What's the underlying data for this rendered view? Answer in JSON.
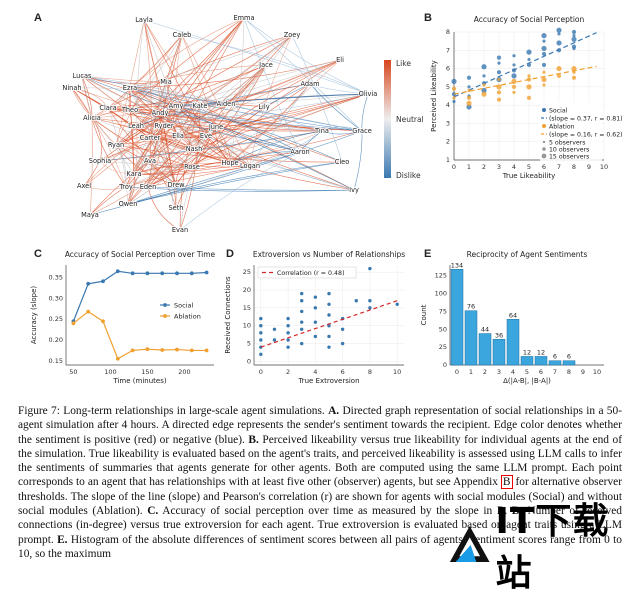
{
  "panelA": {
    "label": "A",
    "colorbar": {
      "top": "Like",
      "mid": "Neutral",
      "bottom": "Dislike"
    },
    "nodes": [
      "Emma",
      "Layla",
      "Caleb",
      "Zoey",
      "Eli",
      "Lucas",
      "Jace",
      "Ninah",
      "Ezra",
      "Mia",
      "Adam",
      "Olivia",
      "Clara",
      "Alicia",
      "Theo",
      "Andy",
      "Amy",
      "Kate",
      "Aiden",
      "Lily",
      "Leah",
      "Ryder",
      "June",
      "Grace",
      "Carter",
      "Ella",
      "Eve",
      "Tina",
      "Ryan",
      "Nash",
      "Aaron",
      "Sophia",
      "Ava",
      "Rose",
      "Hope",
      "Logan",
      "Cleo",
      "Kara",
      "Troy",
      "Drew",
      "Axel",
      "Eden",
      "Ivy",
      "Owen",
      "Seth",
      "Maya",
      "Evan"
    ]
  },
  "colors": {
    "social": "#3a78b0",
    "ablation": "#f0a030",
    "like": "#d8461e",
    "dislike": "#3a78b0"
  },
  "panelB": {
    "label": "B",
    "title": "Accuracy of Social Perception"
  },
  "panelC": {
    "label": "C",
    "title": "Accuracy of Social Perception over Time"
  },
  "panelD": {
    "label": "D",
    "title": "Extroversion vs Number of Relationships"
  },
  "panelE": {
    "label": "E",
    "title": "Reciprocity of Agent Sentiments"
  },
  "chart_data": [
    {
      "type": "scatter",
      "title": "Accuracy of Social Perception",
      "xlabel": "True Likeability",
      "ylabel": "Perceived Likeability",
      "xlim": [
        0,
        10
      ],
      "ylim": [
        1,
        8
      ],
      "xticks": [
        0,
        1,
        2,
        3,
        4,
        5,
        6,
        7,
        8,
        9,
        10
      ],
      "yticks": [
        1,
        2,
        3,
        4,
        5,
        6,
        7,
        8
      ],
      "legend_position": "bottom-right",
      "series": [
        {
          "name": "Social",
          "fit_label": "(slope = 0.37, r = 0.81)",
          "fit": {
            "slope": 0.37,
            "intercept": 4.45
          },
          "points": [
            [
              0,
              4.2
            ],
            [
              0,
              4.6
            ],
            [
              0,
              5.3
            ],
            [
              1,
              4.5
            ],
            [
              1,
              5.5
            ],
            [
              1,
              3.9
            ],
            [
              1,
              5.0
            ],
            [
              2,
              5.2
            ],
            [
              2,
              4.8
            ],
            [
              2,
              5.6
            ],
            [
              3,
              5.8
            ],
            [
              3,
              5.4
            ],
            [
              3,
              6.3
            ],
            [
              4,
              5.9
            ],
            [
              4,
              5.6
            ],
            [
              4,
              6.7
            ],
            [
              5,
              6.2
            ],
            [
              5,
              6.9
            ],
            [
              5,
              6.5
            ],
            [
              6,
              6.8
            ],
            [
              6,
              7.1
            ],
            [
              6,
              7.5
            ],
            [
              6,
              6.2
            ],
            [
              7,
              7.4
            ],
            [
              7,
              7.9
            ],
            [
              7,
              7.0
            ],
            [
              7,
              8.1
            ],
            [
              8,
              7.8
            ],
            [
              8,
              7.2
            ],
            [
              8,
              7.6
            ],
            [
              8,
              7.1
            ],
            [
              8,
              8.0
            ],
            [
              6,
              7.8
            ],
            [
              4,
              6.2
            ],
            [
              3,
              6.6
            ],
            [
              2,
              6.1
            ]
          ]
        },
        {
          "name": "Ablation",
          "fit_label": "(slope = 0.16, r = 0.62)",
          "fit": {
            "slope": 0.16,
            "intercept": 4.6
          },
          "points": [
            [
              0,
              4.4
            ],
            [
              0,
              4.9
            ],
            [
              1,
              4.1
            ],
            [
              1,
              4.8
            ],
            [
              1,
              4.4
            ],
            [
              2,
              4.6
            ],
            [
              2,
              5.1
            ],
            [
              3,
              4.7
            ],
            [
              3,
              5.0
            ],
            [
              3,
              5.4
            ],
            [
              4,
              5.0
            ],
            [
              4,
              5.3
            ],
            [
              4,
              4.7
            ],
            [
              5,
              5.4
            ],
            [
              5,
              5.0
            ],
            [
              5,
              5.6
            ],
            [
              5,
              4.4
            ],
            [
              6,
              5.4
            ],
            [
              6,
              5.8
            ],
            [
              7,
              5.6
            ],
            [
              7,
              6.0
            ],
            [
              8,
              5.8
            ],
            [
              8,
              5.5
            ],
            [
              8,
              6.0
            ],
            [
              6,
              5.1
            ],
            [
              3,
              4.3
            ]
          ]
        }
      ],
      "size_legend": [
        "5 observers",
        "10 observers",
        "15 observers"
      ]
    },
    {
      "type": "line",
      "title": "Accuracy of Social Perception over Time",
      "xlabel": "Time (minutes)",
      "ylabel": "Accuracy (slope)",
      "xlim": [
        40,
        240
      ],
      "ylim": [
        0.14,
        0.38
      ],
      "xticks": [
        50,
        100,
        150,
        200
      ],
      "yticks": [
        0.15,
        0.2,
        0.25,
        0.3,
        0.35
      ],
      "legend_position": "center-right",
      "x": [
        50,
        70,
        90,
        110,
        130,
        150,
        170,
        190,
        210,
        230
      ],
      "series": [
        {
          "name": "Social",
          "values": [
            0.245,
            0.335,
            0.341,
            0.365,
            0.36,
            0.36,
            0.36,
            0.36,
            0.36,
            0.362
          ]
        },
        {
          "name": "Ablation",
          "values": [
            0.24,
            0.268,
            0.245,
            0.155,
            0.175,
            0.178,
            0.176,
            0.177,
            0.175,
            0.175
          ]
        }
      ]
    },
    {
      "type": "scatter",
      "title": "Extroversion vs Number of Relationships",
      "xlabel": "True Extroversion",
      "ylabel": "Received Connections",
      "xlim": [
        -0.5,
        10.5
      ],
      "ylim": [
        -1,
        27
      ],
      "xticks": [
        0,
        2,
        4,
        6,
        8,
        10
      ],
      "yticks": [
        0,
        5,
        10,
        15,
        20,
        25
      ],
      "legend_position": "top-left",
      "fit": {
        "label": "Correlation (r = 0.48)",
        "slope": 1.3,
        "intercept": 4
      },
      "points": [
        [
          0,
          2
        ],
        [
          0,
          4
        ],
        [
          0,
          6
        ],
        [
          0,
          8
        ],
        [
          0,
          10
        ],
        [
          0,
          12
        ],
        [
          1,
          6
        ],
        [
          1,
          9
        ],
        [
          2,
          4
        ],
        [
          2,
          6
        ],
        [
          2,
          8
        ],
        [
          2,
          10
        ],
        [
          2,
          12
        ],
        [
          3,
          5
        ],
        [
          3,
          9
        ],
        [
          3,
          11
        ],
        [
          3,
          14
        ],
        [
          3,
          17
        ],
        [
          3,
          19
        ],
        [
          4,
          7
        ],
        [
          4,
          11
        ],
        [
          4,
          15
        ],
        [
          4,
          18
        ],
        [
          5,
          4
        ],
        [
          5,
          7
        ],
        [
          5,
          10
        ],
        [
          5,
          13
        ],
        [
          5,
          16
        ],
        [
          5,
          19
        ],
        [
          6,
          5
        ],
        [
          6,
          9
        ],
        [
          6,
          12
        ],
        [
          7,
          17
        ],
        [
          8,
          15
        ],
        [
          8,
          17
        ],
        [
          8,
          26
        ],
        [
          10,
          16
        ]
      ]
    },
    {
      "type": "bar",
      "title": "Reciprocity of Agent Sentiments",
      "xlabel": "Δ(|A-B|, |B-A|)",
      "ylabel": "Count",
      "categories": [
        "0",
        "1",
        "2",
        "3",
        "4",
        "5",
        "6",
        "7",
        "8",
        "9",
        "10"
      ],
      "values": [
        134,
        76,
        44,
        36,
        64,
        12,
        12,
        6,
        6,
        0,
        0
      ],
      "data_labels": [
        "134",
        "76",
        "44",
        "36",
        "64",
        "12",
        "12",
        "6",
        "6",
        "",
        ""
      ],
      "ylim": [
        0,
        140
      ],
      "yticks": [
        0,
        25,
        50,
        75,
        100,
        125
      ]
    }
  ],
  "caption": {
    "fig": "Figure 7:",
    "intro": " Long-term relationships in large-scale agent simulations. ",
    "a_label": "A.",
    "a_text": " Directed graph representation of social relationships in a 50-agent simulation after 4 hours. A directed edge represents the sender's sentiment towards the recipient. Edge color denotes whether the sentiment is positive (red) or negative (blue). ",
    "b_label": "B.",
    "b_text": " Perceived likeability versus true likeability for individual agents at the end of the simulation. True likeability is evaluated based on the agent's traits, and perceived likeability is assessed using LLM calls to infer the sentiments of summaries that agents generate for other agents. Both are computed using the same LLM prompt. Each point corresponds to an agent that has relationships with at least five other (observer) agents, but see Appendix ",
    "appendix": "B",
    "b_text2": " for alternative observer thresholds. The slope of the line (slope) and Pearson's correlation (r) are shown for agents with social modules (Social) and without social modules (Ablation). ",
    "c_label": "C.",
    "c_text": " Accuracy of social perception over time as measured by the slope in B. ",
    "d_label": "D.",
    "d_text": " Number of received connections (in-degree) versus true extroversion for each agent. True extroversion is evaluated based on agent traits using a LLM prompt. ",
    "e_label": "E.",
    "e_text": " Histogram of the absolute differences of sentiment scores between all pairs of agents. Sentiment scores range from 0 to 10, so the maximum"
  },
  "watermark": {
    "text": "IT下载站"
  }
}
